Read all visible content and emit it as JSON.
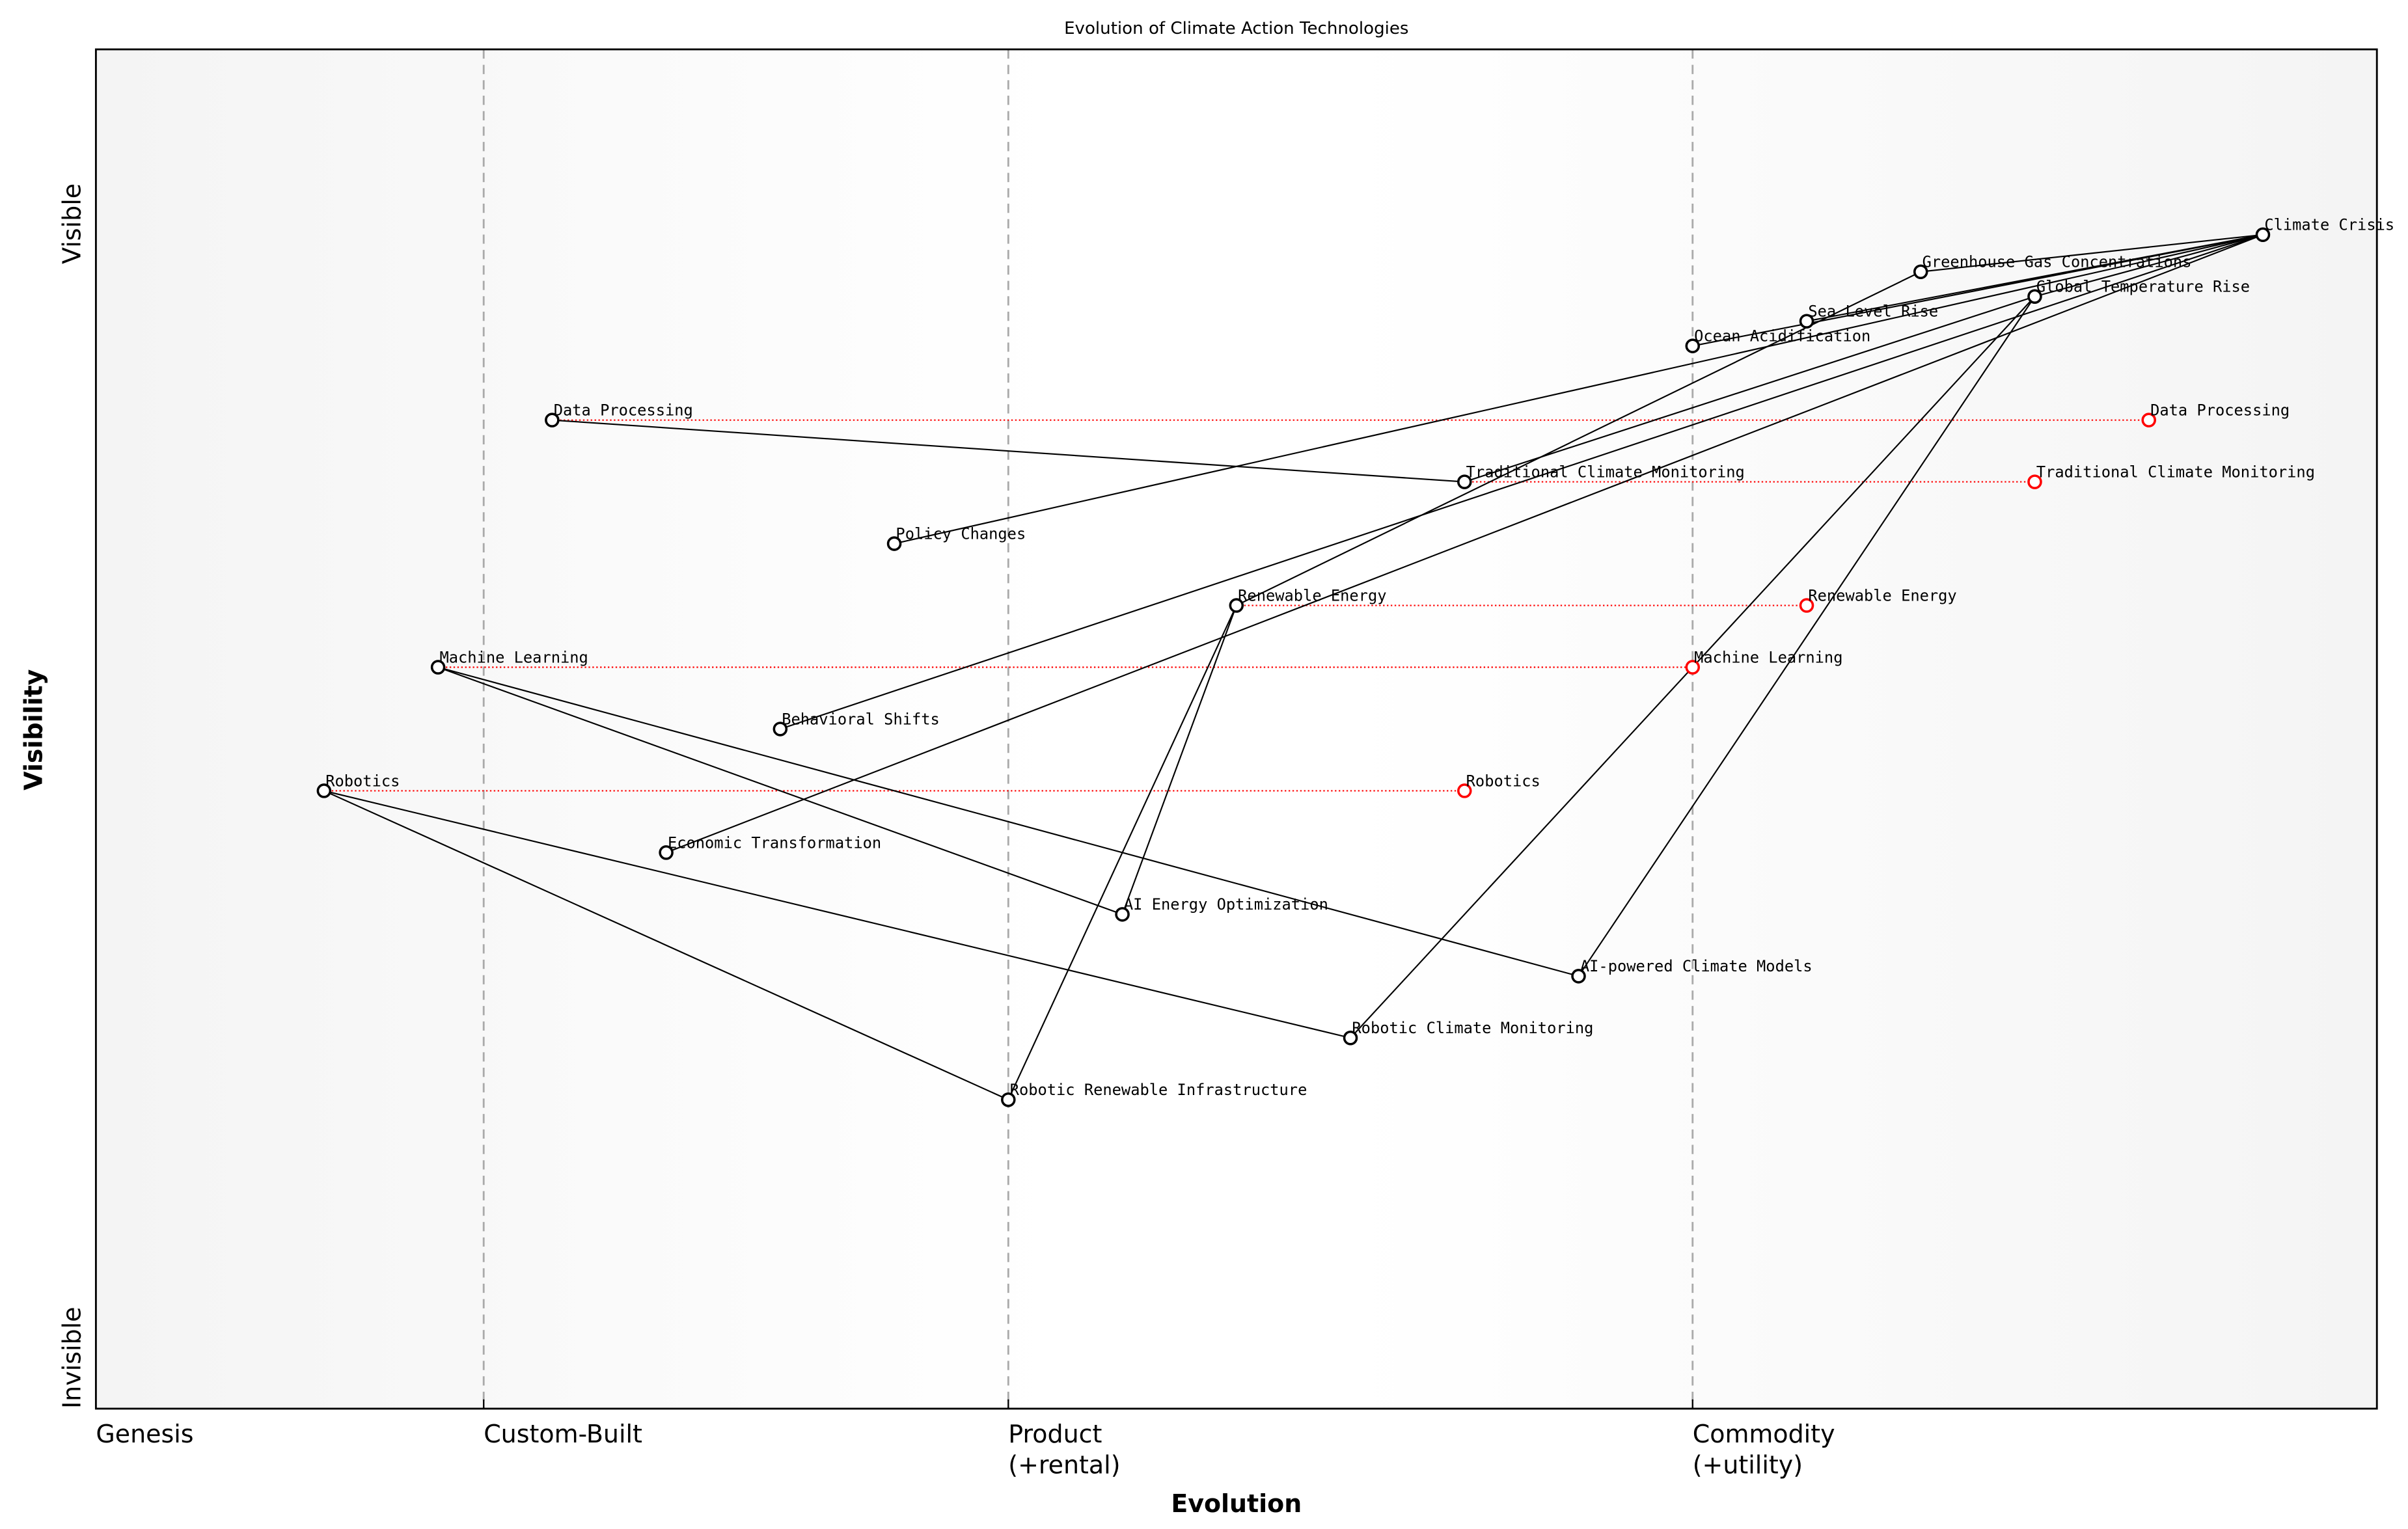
{
  "chart_data": {
    "type": "wardley-map",
    "title": "Evolution of Climate Action Technologies",
    "xlabel": "Evolution",
    "ylabel": "Visibility",
    "xlim": [
      0,
      1
    ],
    "ylim": [
      0,
      1.1
    ],
    "y_end_labels": {
      "top": "Visible",
      "bottom": "Invisible"
    },
    "stages": [
      {
        "label": "Genesis",
        "x": 0
      },
      {
        "label": "Custom-Built",
        "x": 0.17
      },
      {
        "label": "Product",
        "sub": "(+rental)",
        "x": 0.4
      },
      {
        "label": "Commodity",
        "sub": "(+utility)",
        "x": 0.7
      }
    ],
    "colors": {
      "node": "#000000",
      "evolved": "#ff0000",
      "stage_line": "#aaaaaa",
      "edge_fill": "#f5f5f5",
      "mid_fill": "#ffffff"
    },
    "components": [
      {
        "name": "Climate Crisis",
        "x": 0.95,
        "y": 0.95
      },
      {
        "name": "Greenhouse Gas Concentrations",
        "x": 0.8,
        "y": 0.92
      },
      {
        "name": "Global Temperature Rise",
        "x": 0.85,
        "y": 0.9
      },
      {
        "name": "Sea Level Rise",
        "x": 0.75,
        "y": 0.88
      },
      {
        "name": "Ocean Acidification",
        "x": 0.7,
        "y": 0.86
      },
      {
        "name": "Data Processing",
        "x": 0.2,
        "y": 0.8
      },
      {
        "name": "Traditional Climate Monitoring",
        "x": 0.6,
        "y": 0.75
      },
      {
        "name": "Policy Changes",
        "x": 0.35,
        "y": 0.7
      },
      {
        "name": "Renewable Energy",
        "x": 0.5,
        "y": 0.65
      },
      {
        "name": "Machine Learning",
        "x": 0.15,
        "y": 0.6
      },
      {
        "name": "Behavioral Shifts",
        "x": 0.3,
        "y": 0.55
      },
      {
        "name": "Robotics",
        "x": 0.1,
        "y": 0.5
      },
      {
        "name": "Economic Transformation",
        "x": 0.25,
        "y": 0.45
      },
      {
        "name": "AI Energy Optimization",
        "x": 0.45,
        "y": 0.4
      },
      {
        "name": "AI-powered Climate Models",
        "x": 0.65,
        "y": 0.35
      },
      {
        "name": "Robotic Climate Monitoring",
        "x": 0.55,
        "y": 0.3
      },
      {
        "name": "Robotic Renewable Infrastructure",
        "x": 0.4,
        "y": 0.25
      }
    ],
    "evolutions": [
      {
        "name": "Data Processing",
        "from": 0.2,
        "to": 0.9,
        "y": 0.8
      },
      {
        "name": "Traditional Climate Monitoring",
        "from": 0.6,
        "to": 0.85,
        "y": 0.75
      },
      {
        "name": "Renewable Energy",
        "from": 0.5,
        "to": 0.75,
        "y": 0.65
      },
      {
        "name": "Machine Learning",
        "from": 0.15,
        "to": 0.7,
        "y": 0.6
      },
      {
        "name": "Robotics",
        "from": 0.1,
        "to": 0.6,
        "y": 0.5
      }
    ],
    "links": [
      [
        "Climate Crisis",
        "Greenhouse Gas Concentrations"
      ],
      [
        "Climate Crisis",
        "Global Temperature Rise"
      ],
      [
        "Climate Crisis",
        "Sea Level Rise"
      ],
      [
        "Climate Crisis",
        "Ocean Acidification"
      ],
      [
        "Climate Crisis",
        "Policy Changes"
      ],
      [
        "Climate Crisis",
        "Behavioral Shifts"
      ],
      [
        "Climate Crisis",
        "Economic Transformation"
      ],
      [
        "Greenhouse Gas Concentrations",
        "Renewable Energy"
      ],
      [
        "Global Temperature Rise",
        "Traditional Climate Monitoring"
      ],
      [
        "Global Temperature Rise",
        "AI-powered Climate Models"
      ],
      [
        "Global Temperature Rise",
        "Robotic Climate Monitoring"
      ],
      [
        "Traditional Climate Monitoring",
        "Data Processing"
      ],
      [
        "Renewable Energy",
        "AI Energy Optimization"
      ],
      [
        "Renewable Energy",
        "Robotic Renewable Infrastructure"
      ],
      [
        "AI Energy Optimization",
        "Machine Learning"
      ],
      [
        "AI-powered Climate Models",
        "Machine Learning"
      ],
      [
        "Robotic Climate Monitoring",
        "Robotics"
      ],
      [
        "Robotic Renewable Infrastructure",
        "Robotics"
      ]
    ]
  }
}
